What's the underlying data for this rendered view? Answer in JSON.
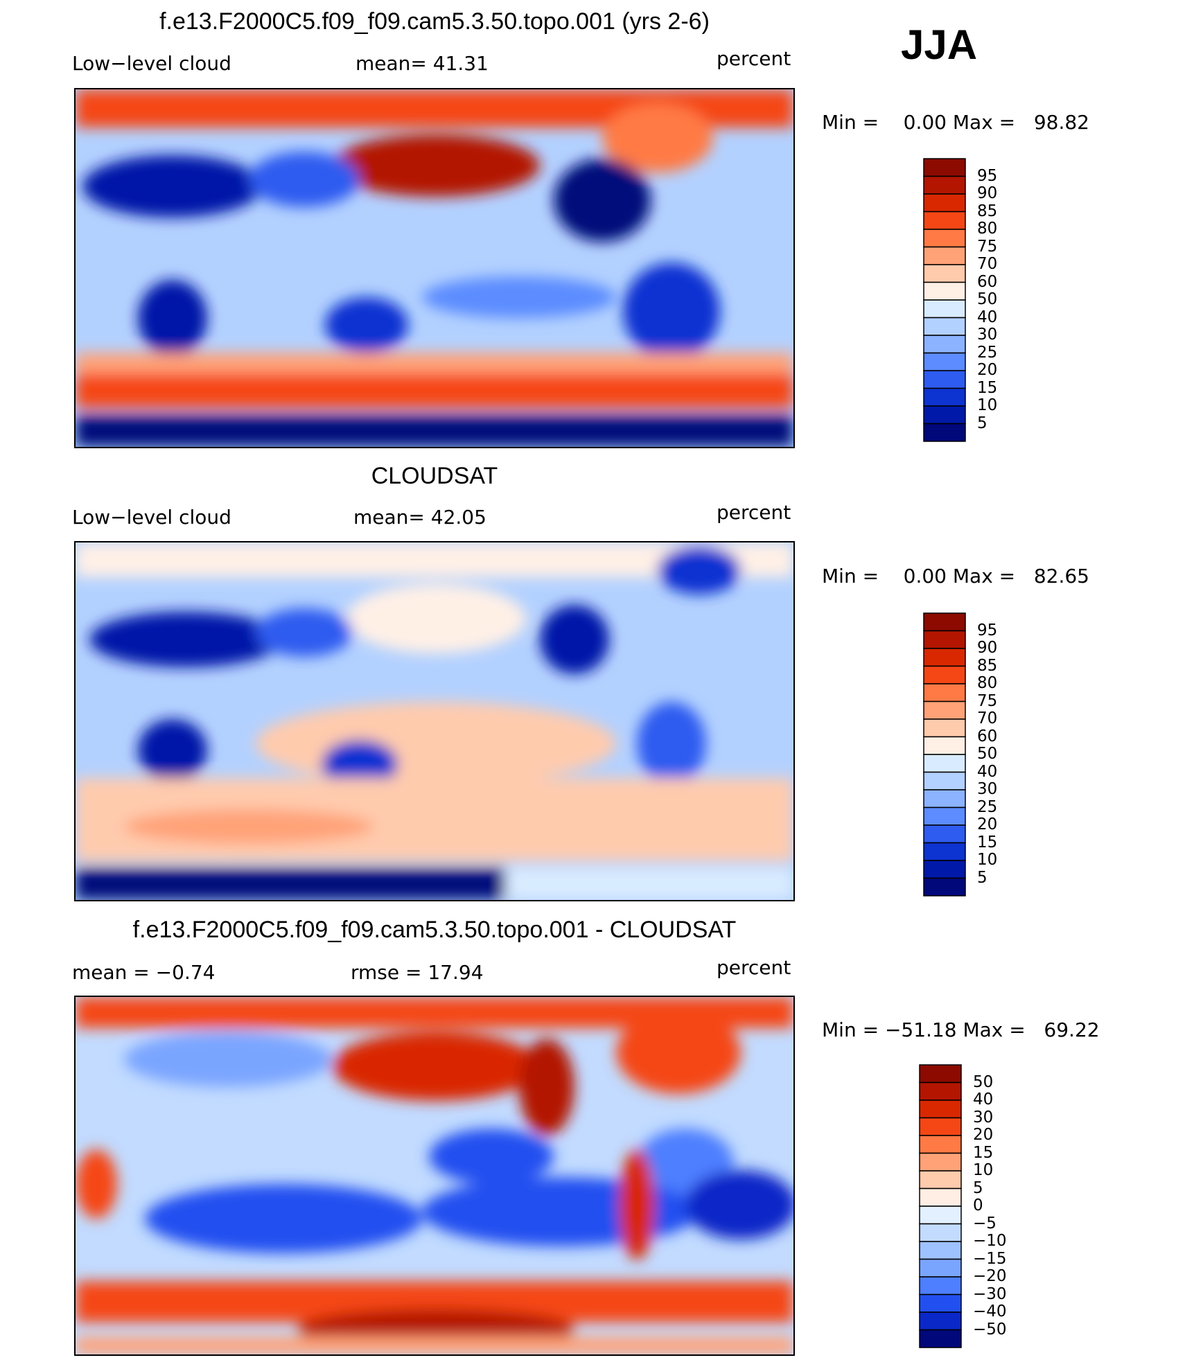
{
  "season": "JJA",
  "panels": [
    {
      "title": "f.e13.F2000C5.f09_f09.cam5.3.50.topo.001 (yrs 2-6)",
      "left": "Low−level cloud",
      "center": "mean=   41.31",
      "right": "percent",
      "minmax": "Min =    0.00 Max =   98.82"
    },
    {
      "title": "CLOUDSAT",
      "left": "Low−level cloud",
      "center": "mean=   42.05",
      "right": "percent",
      "minmax": "Min =    0.00 Max =   82.65"
    },
    {
      "title": "f.e13.F2000C5.f09_f09.cam5.3.50.topo.001 - CLOUDSAT",
      "left": "mean =   −0.74",
      "center": "rmse =    17.94",
      "right": "percent",
      "minmax": "Min = −51.18 Max =   69.22"
    }
  ],
  "colorbars": {
    "absolute": {
      "levels": [
        "95",
        "90",
        "85",
        "80",
        "75",
        "70",
        "60",
        "50",
        "40",
        "30",
        "25",
        "20",
        "15",
        "10",
        "5"
      ],
      "colors": [
        "#8c0a00",
        "#b31500",
        "#d92800",
        "#f54715",
        "#ff7a45",
        "#ffa278",
        "#ffcbad",
        "#fff0e6",
        "#d9ecff",
        "#b3d1ff",
        "#8cb3ff",
        "#5c8cff",
        "#2e5cf0",
        "#0d33d1",
        "#0019a8",
        "#00087a"
      ]
    },
    "difference": {
      "levels": [
        "50",
        "40",
        "30",
        "20",
        "15",
        "10",
        "5",
        "0",
        "−5",
        "−10",
        "−15",
        "−20",
        "−30",
        "−40",
        "−50"
      ],
      "colors": [
        "#8c0a00",
        "#b31500",
        "#d92800",
        "#f54715",
        "#ff7a45",
        "#ffa278",
        "#ffcbad",
        "#ffeee3",
        "#e3f0ff",
        "#c2dbff",
        "#9ec2ff",
        "#7aa5ff",
        "#4d7fff",
        "#2250f0",
        "#0a28c8",
        "#00087a"
      ]
    }
  }
}
